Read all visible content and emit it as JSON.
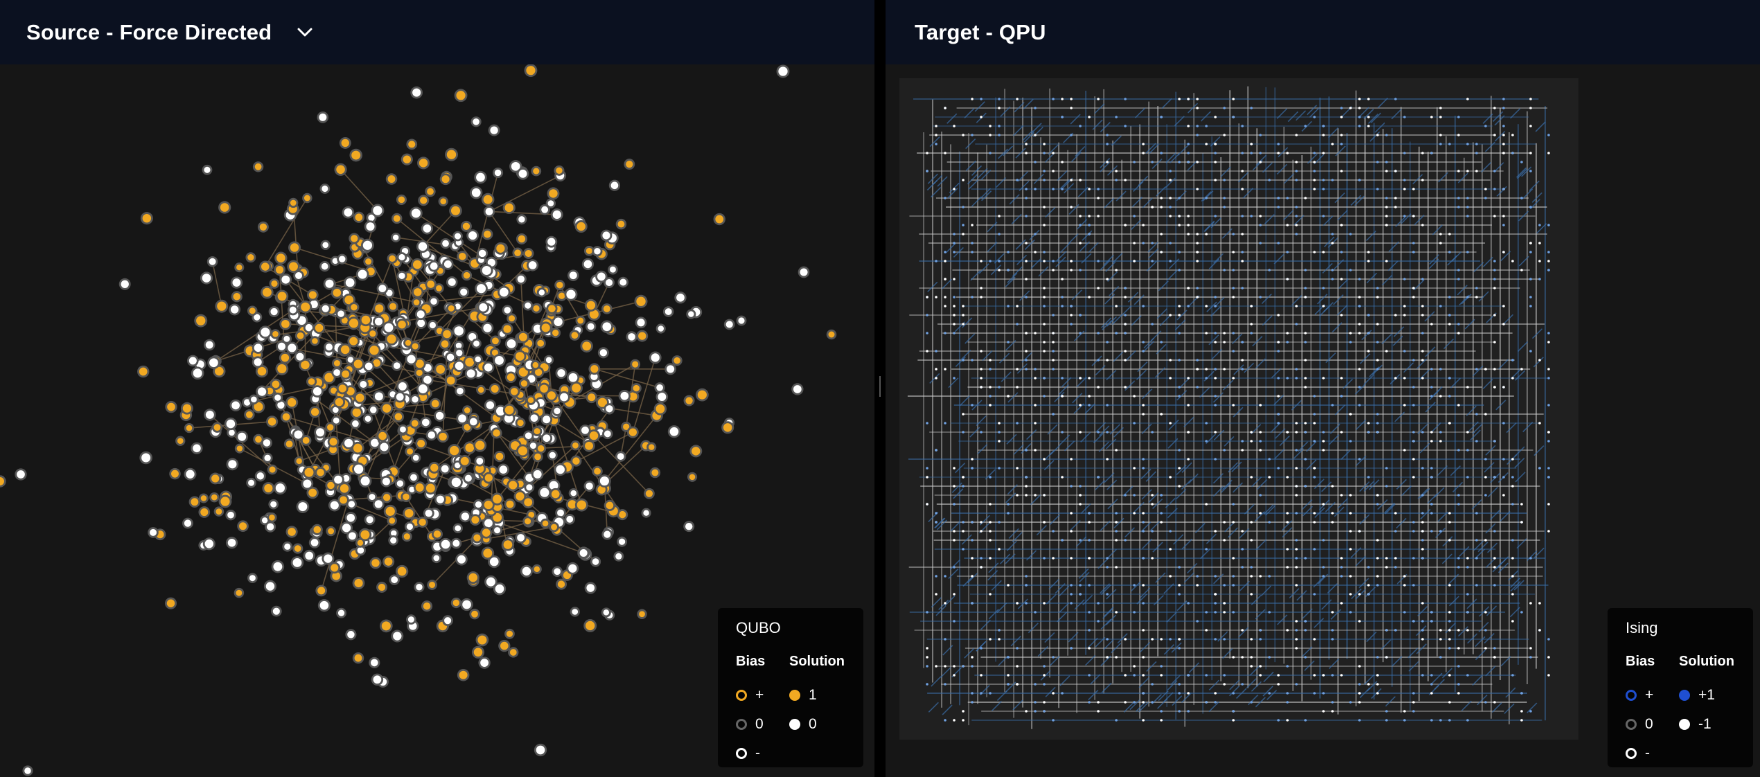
{
  "source": {
    "title": "Source - Force Directed",
    "legend": {
      "title": "QUBO",
      "bias_header": "Bias",
      "solution_header": "Solution",
      "bias_items": [
        {
          "label": "+",
          "color": "#f2a922"
        },
        {
          "label": "0",
          "color": "#666666"
        },
        {
          "label": "-",
          "color": "#ffffff"
        }
      ],
      "solution_items": [
        {
          "label": "1",
          "color": "#f2a922"
        },
        {
          "label": "0",
          "color": "#ffffff"
        }
      ]
    }
  },
  "target": {
    "title": "Target - QPU",
    "legend": {
      "title": "Ising",
      "bias_header": "Bias",
      "solution_header": "Solution",
      "bias_items": [
        {
          "label": "+",
          "color": "#1f4fd1"
        },
        {
          "label": "0",
          "color": "#666666"
        },
        {
          "label": "-",
          "color": "#ffffff"
        }
      ],
      "solution_items": [
        {
          "label": "+1",
          "color": "#1f4fd1"
        },
        {
          "label": "-1",
          "color": "#ffffff"
        }
      ]
    }
  },
  "colors": {
    "header_bg": "#0b1120",
    "canvas_bg": "#161616",
    "edge_source": "#7a6448",
    "node_orange": "#f2a922",
    "node_white": "#ffffff",
    "qpu_white": "#cfcfcf",
    "qpu_blue": "#3a6ea8"
  }
}
